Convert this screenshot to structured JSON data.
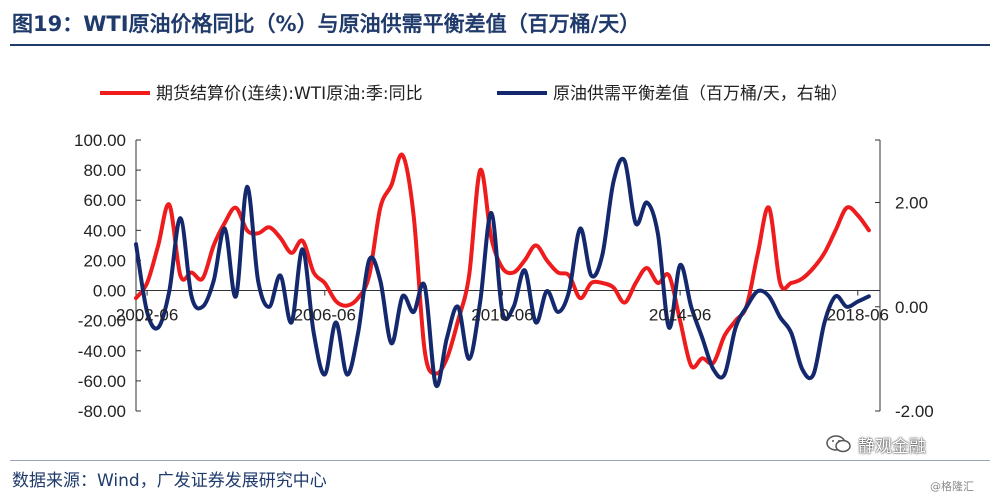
{
  "header": {
    "title": "图19：WTI原油价格同比（%）与原油供需平衡差值（百万桶/天）"
  },
  "footer": {
    "source": "数据来源：Wind，广发证券发展研究中心",
    "watermark": "静观金融",
    "credit": "@格隆汇"
  },
  "colors": {
    "red": "#ee1c1c",
    "navy": "#14286e",
    "title": "#1f3a6b"
  },
  "chart_data": {
    "type": "line",
    "legend_position": "top",
    "grid": false,
    "x_tick_labels": [
      "2002-06",
      "2006-06",
      "2010-06",
      "2014-06",
      "2018-06"
    ],
    "x_tick_years": [
      2002.5,
      2006.5,
      2010.5,
      2014.5,
      2018.5
    ],
    "x_range": [
      2002.25,
      2019.0
    ],
    "y_left": {
      "ylim": [
        -80,
        100
      ],
      "ticks": [
        "100.00",
        "80.00",
        "60.00",
        "40.00",
        "20.00",
        "0.00",
        "-20.00",
        "-40.00",
        "-60.00",
        "-80.00"
      ]
    },
    "y_right": {
      "ylim": [
        -2,
        3.2
      ],
      "ticks": [
        "2.00",
        "0.00",
        "-2.00"
      ]
    },
    "series": [
      {
        "name": "期货结算价(连续):WTI原油:季:同比",
        "axis": "left",
        "color": "#ee1c1c",
        "x": [
          2002.25,
          2002.5,
          2002.75,
          2003.0,
          2003.25,
          2003.5,
          2003.75,
          2004.0,
          2004.25,
          2004.5,
          2004.75,
          2005.0,
          2005.25,
          2005.5,
          2005.75,
          2006.0,
          2006.25,
          2006.5,
          2006.75,
          2007.0,
          2007.25,
          2007.5,
          2007.75,
          2008.0,
          2008.25,
          2008.5,
          2008.75,
          2009.0,
          2009.25,
          2009.5,
          2009.75,
          2010.0,
          2010.25,
          2010.5,
          2010.75,
          2011.0,
          2011.25,
          2011.5,
          2011.75,
          2012.0,
          2012.25,
          2012.5,
          2012.75,
          2013.0,
          2013.25,
          2013.5,
          2013.75,
          2014.0,
          2014.25,
          2014.5,
          2014.75,
          2015.0,
          2015.25,
          2015.5,
          2015.75,
          2016.0,
          2016.25,
          2016.5,
          2016.75,
          2017.0,
          2017.25,
          2017.5,
          2017.75,
          2018.0,
          2018.25,
          2018.5,
          2018.75
        ],
        "values": [
          -5,
          5,
          30,
          57,
          10,
          12,
          8,
          30,
          45,
          55,
          40,
          38,
          42,
          35,
          25,
          33,
          12,
          5,
          -7,
          -10,
          -5,
          10,
          55,
          70,
          90,
          50,
          -40,
          -55,
          -45,
          -20,
          10,
          80,
          35,
          15,
          12,
          20,
          30,
          20,
          12,
          10,
          -5,
          5,
          5,
          2,
          -8,
          5,
          15,
          5,
          10,
          -20,
          -50,
          -45,
          -48,
          -30,
          -20,
          -10,
          25,
          55,
          5,
          5,
          8,
          15,
          25,
          40,
          55,
          50,
          40
        ]
      },
      {
        "name": "原油供需平衡差值（百万桶/天，右轴）",
        "axis": "right",
        "color": "#14286e",
        "x": [
          2002.25,
          2002.5,
          2002.75,
          2003.0,
          2003.25,
          2003.5,
          2003.75,
          2004.0,
          2004.25,
          2004.5,
          2004.75,
          2005.0,
          2005.25,
          2005.5,
          2005.75,
          2006.0,
          2006.25,
          2006.5,
          2006.75,
          2007.0,
          2007.25,
          2007.5,
          2007.75,
          2008.0,
          2008.25,
          2008.5,
          2008.75,
          2009.0,
          2009.25,
          2009.5,
          2009.75,
          2010.0,
          2010.25,
          2010.5,
          2010.75,
          2011.0,
          2011.25,
          2011.5,
          2011.75,
          2012.0,
          2012.25,
          2012.5,
          2012.75,
          2013.0,
          2013.25,
          2013.5,
          2013.75,
          2014.0,
          2014.25,
          2014.5,
          2014.75,
          2015.0,
          2015.25,
          2015.5,
          2015.75,
          2016.0,
          2016.25,
          2016.5,
          2016.75,
          2017.0,
          2017.25,
          2017.5,
          2017.75,
          2018.0,
          2018.25,
          2018.5,
          2018.75
        ],
        "values": [
          1.2,
          -0.1,
          -0.4,
          0.3,
          1.7,
          0.2,
          0.0,
          0.5,
          1.5,
          0.2,
          2.3,
          0.5,
          0.0,
          0.6,
          -0.3,
          1.1,
          -0.5,
          -1.3,
          -0.3,
          -1.3,
          -0.5,
          0.9,
          0.5,
          -0.7,
          0.2,
          -0.1,
          0.4,
          -1.5,
          -0.6,
          0.0,
          -1.0,
          0.1,
          1.8,
          -0.1,
          0.0,
          0.7,
          -0.3,
          0.3,
          -0.1,
          0.3,
          1.5,
          0.6,
          1.0,
          2.4,
          2.8,
          1.6,
          2.0,
          1.4,
          -0.4,
          0.8,
          0.0,
          -0.6,
          -1.2,
          -1.3,
          -0.4,
          0.0,
          0.3,
          0.2,
          -0.2,
          -0.5,
          -1.2,
          -1.3,
          -0.3,
          0.2,
          0.0,
          0.1,
          0.2
        ]
      }
    ]
  }
}
